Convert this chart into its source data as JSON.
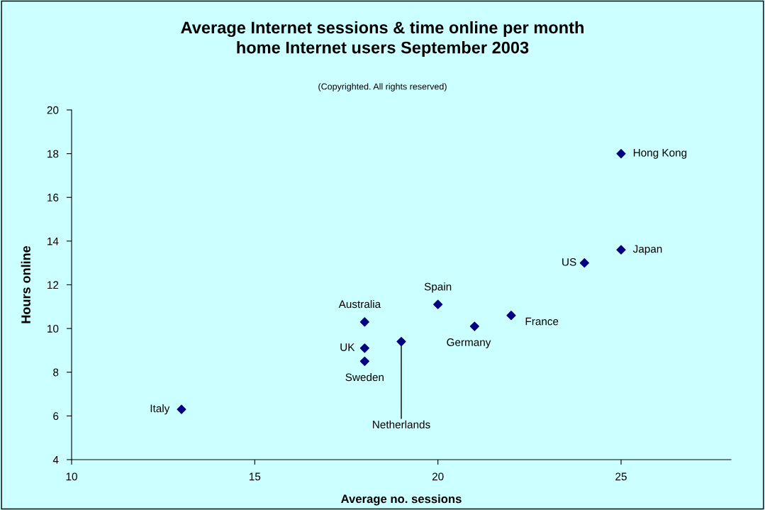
{
  "chart_data": {
    "type": "scatter",
    "title": "Average Internet sessions & time online per month\nhome Internet users September 2003",
    "subtitle": "(Copyrighted. All rights reserved)",
    "xlabel": "Average no. sessions",
    "ylabel": "Hours online",
    "x": [
      25,
      25,
      24,
      20,
      22,
      18,
      21,
      18,
      18,
      19,
      13
    ],
    "values": [
      18.0,
      13.6,
      13.0,
      11.1,
      10.6,
      10.3,
      10.1,
      9.1,
      8.5,
      9.4,
      6.3
    ],
    "color": "#000080",
    "marker": "diamond",
    "grid": false,
    "legend": false,
    "xlim": [
      10,
      28
    ],
    "xticks": [
      10,
      15,
      20,
      25
    ],
    "ylim": [
      4,
      20
    ],
    "yticks": [
      4,
      6,
      8,
      10,
      12,
      14,
      16,
      18,
      20
    ],
    "annotations": [
      {
        "text": "Hong Kong",
        "x": 25,
        "y": 18.0
      },
      {
        "text": "Japan",
        "x": 25,
        "y": 13.6
      },
      {
        "text": "US",
        "x": 24,
        "y": 13.0
      },
      {
        "text": "Spain",
        "x": 20,
        "y": 11.1
      },
      {
        "text": "France",
        "x": 22,
        "y": 10.6
      },
      {
        "text": "Australia",
        "x": 18,
        "y": 10.3
      },
      {
        "text": "Germany",
        "x": 21,
        "y": 10.1
      },
      {
        "text": "UK",
        "x": 18,
        "y": 9.1
      },
      {
        "text": "Sweden",
        "x": 18,
        "y": 8.5
      },
      {
        "text": "Netherlands",
        "x": 19,
        "y": 9.4
      },
      {
        "text": "Italy",
        "x": 13,
        "y": 6.3
      }
    ]
  }
}
